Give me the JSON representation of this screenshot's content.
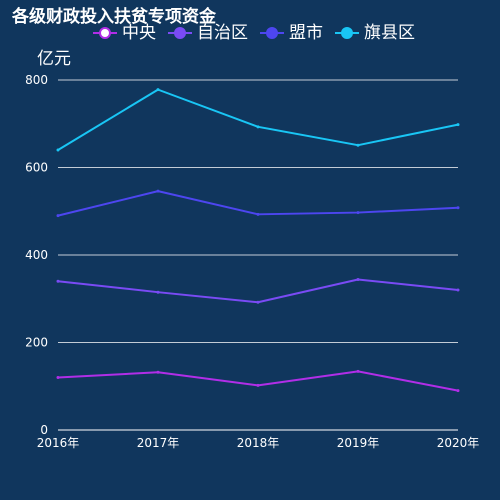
{
  "chart_data": {
    "type": "line",
    "title": "各级财政投入扶贫专项资金",
    "ylabel": "亿元",
    "categories": [
      "2016年",
      "2017年",
      "2018年",
      "2019年",
      "2020年"
    ],
    "yticks": [
      0,
      200,
      400,
      600,
      800
    ],
    "ylim": [
      0,
      800
    ],
    "grid": true,
    "legend_position": "top-center",
    "series": [
      {
        "name": "中央",
        "color": "#b12ee8",
        "values": [
          120,
          132,
          102,
          134,
          90
        ]
      },
      {
        "name": "自治区",
        "color": "#7a4bf5",
        "values": [
          340,
          315,
          292,
          344,
          320
        ]
      },
      {
        "name": "盟市",
        "color": "#4d46f0",
        "values": [
          490,
          546,
          493,
          497,
          508
        ]
      },
      {
        "name": "旗县区",
        "color": "#19c6f5",
        "values": [
          640,
          778,
          693,
          651,
          698
        ]
      }
    ]
  },
  "colors": {
    "background": "#10365d",
    "text": "#ffffff",
    "gridline": "#ffffff"
  }
}
